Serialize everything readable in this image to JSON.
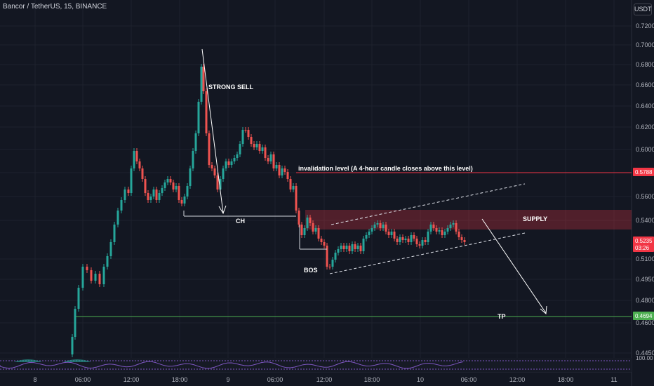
{
  "header": {
    "symbol_title": "Bancor / TetherUS, 15, BINANCE",
    "currency": "USDT"
  },
  "chart_data": {
    "type": "candlestick",
    "title": "Bancor / TetherUS, 15, BINANCE",
    "xlabel": "",
    "ylabel": "",
    "x_ticks": [
      "8",
      "06:00",
      "12:00",
      "18:00",
      "9",
      "06:00",
      "12:00",
      "18:00",
      "10",
      "06:00",
      "12:00",
      "18:00",
      "11"
    ],
    "y_ticks": [
      "0.7200",
      "0.7000",
      "0.6800",
      "0.6600",
      "0.6400",
      "0.6200",
      "0.6000",
      "0.5800",
      "0.5600",
      "0.5400",
      "0.5100",
      "0.4950",
      "0.4800",
      "0.4600",
      "0.4450"
    ],
    "price_tags": [
      {
        "label": "0.5788",
        "color": "#f23645"
      },
      {
        "label": "0.5235",
        "color": "#f23645"
      },
      {
        "label": "03:26",
        "color": "#f23645"
      },
      {
        "label": "0.4694",
        "color": "#4caf50"
      }
    ],
    "levels": [
      {
        "name": "invalidation",
        "price": 0.5788,
        "color": "#f23645",
        "label": "invalidation level (A 4-hour candle closes above this level)"
      },
      {
        "name": "tp",
        "price": 0.4694,
        "color": "#4caf50",
        "label": "TP"
      }
    ],
    "annotations": [
      "STRONG SELL",
      "CH",
      "BOS",
      "SUPPLY"
    ],
    "supply_zone": [
      0.5355,
      0.5475
    ],
    "indicator_ticks": [
      "100.00"
    ],
    "colors": {
      "up": "#26a69a",
      "down": "#ef5350",
      "background": "#131722"
    }
  }
}
